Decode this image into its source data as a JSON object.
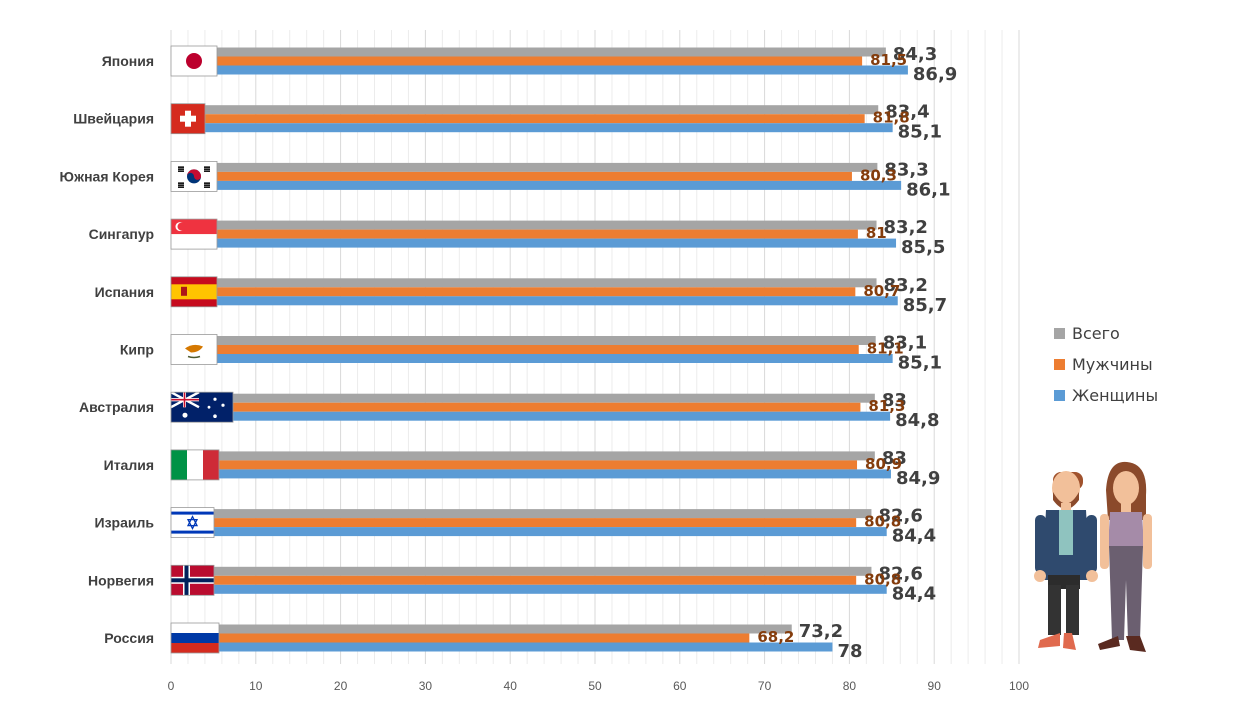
{
  "chart_data": {
    "type": "bar",
    "orientation": "horizontal",
    "categories": [
      "Япония",
      "Швейцария",
      "Южная Корея",
      "Сингапур",
      "Испания",
      "Кипр",
      "Австралия",
      "Италия",
      "Израиль",
      "Норвегия",
      "Россия"
    ],
    "series": [
      {
        "name": "Всего",
        "color": "#a5a5a5",
        "values": [
          84.3,
          83.4,
          83.3,
          83.2,
          83.2,
          83.1,
          83,
          83,
          82.6,
          82.6,
          73.2
        ],
        "labels": [
          "84,3",
          "83,4",
          "83,3",
          "83,2",
          "83,2",
          "83,1",
          "83",
          "83",
          "82,6",
          "82,6",
          "73,2"
        ]
      },
      {
        "name": "Мужчины",
        "color": "#ed7d31",
        "values": [
          81.5,
          81.8,
          80.3,
          81,
          80.7,
          81.1,
          81.3,
          80.9,
          80.8,
          80.8,
          68.2
        ],
        "labels": [
          "81,5",
          "81,8",
          "80,3",
          "81",
          "80,7",
          "81,1",
          "81,3",
          "80,9",
          "80,8",
          "80,8",
          "68,2"
        ]
      },
      {
        "name": "Женщины",
        "color": "#5b9bd5",
        "values": [
          86.9,
          85.1,
          86.1,
          85.5,
          85.7,
          85.1,
          84.8,
          84.9,
          84.4,
          84.4,
          78
        ],
        "labels": [
          "86,9",
          "85,1",
          "86,1",
          "85,5",
          "85,7",
          "85,1",
          "84,8",
          "84,9",
          "84,4",
          "84,4",
          "78"
        ]
      }
    ],
    "xlim": [
      0,
      100
    ],
    "xticks": [
      0,
      10,
      20,
      30,
      40,
      50,
      60,
      70,
      80,
      90,
      100
    ],
    "grid": true,
    "legend_position": "right",
    "flags": [
      "japan-flag",
      "switzerland-flag",
      "south-korea-flag",
      "singapore-flag",
      "spain-flag",
      "cyprus-flag",
      "australia-flag",
      "italy-flag",
      "israel-flag",
      "norway-flag",
      "russia-flag"
    ]
  },
  "legend": {
    "items": [
      {
        "label": "Всего",
        "color": "#a5a5a5"
      },
      {
        "label": "Мужчины",
        "color": "#ed7d31"
      },
      {
        "label": "Женщины",
        "color": "#5b9bd5"
      }
    ]
  },
  "illustration": {
    "icon": "man-and-woman-icon"
  }
}
